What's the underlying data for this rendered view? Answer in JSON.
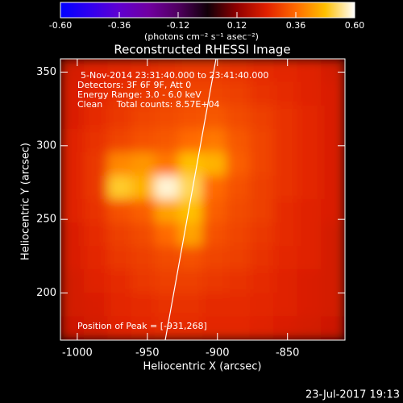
{
  "chart_data": {
    "type": "heatmap",
    "title": "Reconstructed RHESSI Image",
    "xlabel": "Heliocentric X (arcsec)",
    "ylabel": "Heliocentric Y (arcsec)",
    "xlim": [
      -1012,
      -809
    ],
    "ylim": [
      168,
      359
    ],
    "xticks": [
      -1000,
      -950,
      -900,
      -850
    ],
    "yticks": [
      200,
      250,
      300,
      350
    ],
    "colorbar_label": "(photons cm⁻² s⁻¹ asec⁻²)",
    "zlim": [
      -0.6,
      0.6
    ],
    "zticks": [
      {
        "value": -0.6,
        "label": "-0.60"
      },
      {
        "value": -0.36,
        "label": "-0.36"
      },
      {
        "value": -0.12,
        "label": "-0.12"
      },
      {
        "value": 0.12,
        "label": "0.12"
      },
      {
        "value": 0.36,
        "label": "0.36"
      },
      {
        "value": 0.6,
        "label": "0.60"
      }
    ],
    "colormap": [
      "#0000ff",
      "#3000f0",
      "#6000d0",
      "#7000a0",
      "#500060",
      "#100008",
      "#900000",
      "#e02000",
      "#ff6a00",
      "#ffc000",
      "#ffffff"
    ],
    "annotations": [
      "5-Nov-2014 23:31:40.000 to 23:41:40.000",
      "Detectors: 3F 6F 9F, Att 0",
      "Energy Range: 3.0 - 6.0 keV",
      "Clean     Total counts: 8.57E+04"
    ],
    "peak_label": "Position of Peak = [-931,268]",
    "footer": "23-Jul-2017 19:13",
    "z": [
      [
        0.22,
        0.24,
        0.25,
        0.26,
        0.27,
        0.28,
        0.28,
        0.27,
        0.26,
        0.25,
        0.24,
        0.22
      ],
      [
        0.23,
        0.25,
        0.27,
        0.28,
        0.29,
        0.3,
        0.3,
        0.29,
        0.27,
        0.26,
        0.24,
        0.23
      ],
      [
        0.23,
        0.26,
        0.28,
        0.3,
        0.31,
        0.32,
        0.33,
        0.31,
        0.29,
        0.27,
        0.25,
        0.23
      ],
      [
        0.24,
        0.27,
        0.3,
        0.32,
        0.33,
        0.36,
        0.38,
        0.33,
        0.3,
        0.27,
        0.25,
        0.23
      ],
      [
        0.24,
        0.28,
        0.4,
        0.42,
        0.38,
        0.48,
        0.46,
        0.34,
        0.3,
        0.27,
        0.25,
        0.23
      ],
      [
        0.24,
        0.28,
        0.5,
        0.46,
        0.58,
        0.52,
        0.36,
        0.32,
        0.29,
        0.27,
        0.25,
        0.23
      ],
      [
        0.24,
        0.27,
        0.32,
        0.34,
        0.44,
        0.48,
        0.34,
        0.31,
        0.29,
        0.26,
        0.24,
        0.23
      ],
      [
        0.23,
        0.26,
        0.29,
        0.31,
        0.36,
        0.44,
        0.32,
        0.3,
        0.28,
        0.26,
        0.24,
        0.22
      ],
      [
        0.23,
        0.25,
        0.28,
        0.29,
        0.31,
        0.32,
        0.3,
        0.29,
        0.27,
        0.25,
        0.24,
        0.22
      ],
      [
        0.22,
        0.24,
        0.26,
        0.28,
        0.29,
        0.29,
        0.28,
        0.27,
        0.26,
        0.24,
        0.23,
        0.22
      ],
      [
        0.22,
        0.23,
        0.25,
        0.26,
        0.27,
        0.27,
        0.26,
        0.26,
        0.25,
        0.24,
        0.23,
        0.22
      ],
      [
        0.21,
        0.22,
        0.24,
        0.25,
        0.26,
        0.26,
        0.25,
        0.25,
        0.24,
        0.23,
        0.22,
        0.21
      ]
    ]
  }
}
